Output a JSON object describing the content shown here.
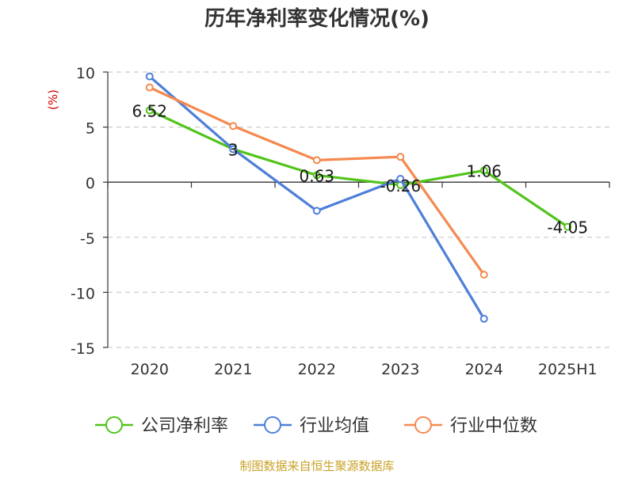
{
  "chart_data": {
    "type": "line",
    "title": "历年净利率变化情况(%)",
    "ylabel": "(%)",
    "xlabel": "",
    "categories": [
      "2020",
      "2021",
      "2022",
      "2023",
      "2024",
      "2025H1"
    ],
    "ylim": [
      -15,
      10
    ],
    "yticks": [
      10,
      5,
      0,
      -5,
      -10,
      -15
    ],
    "grid": true,
    "legend_position": "bottom",
    "series": [
      {
        "name": "公司净利率",
        "color": "#52c41a",
        "values": [
          6.52,
          3,
          0.63,
          -0.26,
          1.06,
          -4.05
        ],
        "labels": [
          "6.52",
          "3",
          "0.63",
          "-0.26",
          "1.06",
          "-4.05"
        ]
      },
      {
        "name": "行业均值",
        "color": "#4e7fd8",
        "values": [
          9.6,
          3.0,
          -2.6,
          0.3,
          -12.4,
          null
        ]
      },
      {
        "name": "行业中位数",
        "color": "#f5894f",
        "values": [
          8.6,
          5.1,
          2.0,
          2.3,
          -8.4,
          null
        ]
      }
    ]
  },
  "footer": {
    "source": "制图数据来自恒生聚源数据库",
    "source_color": "#c9a227"
  }
}
